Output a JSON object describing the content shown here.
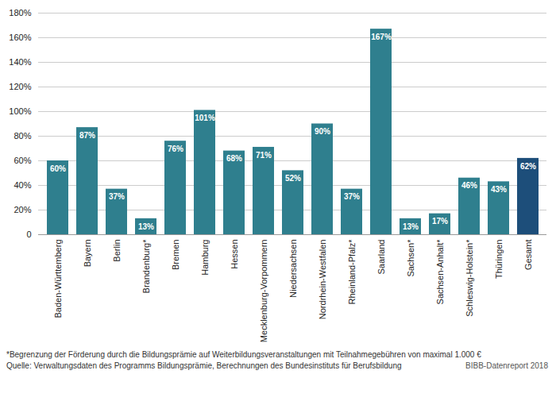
{
  "chart_data": {
    "type": "bar",
    "categories": [
      "Baden-Württemberg",
      "Bayern",
      "Berlin",
      "Brandenburg*",
      "Bremen",
      "Hamburg",
      "Hessen",
      "Mecklenburg-Vorpommern",
      "Niedersachsen",
      "Nordrhein-Westfalen",
      "Rheinland-Pfalz*",
      "Saarland",
      "Sachsen*",
      "Sachsen-Anhalt*",
      "Schleswig-Holstein*",
      "Thüringen",
      "Gesamt"
    ],
    "values": [
      60,
      87,
      37,
      13,
      76,
      101,
      68,
      71,
      52,
      90,
      37,
      167,
      13,
      17,
      46,
      43,
      62
    ],
    "value_labels": [
      "60%",
      "87%",
      "37%",
      "13%",
      "76%",
      "101%",
      "68%",
      "71%",
      "52%",
      "90%",
      "37%",
      "167%",
      "13%",
      "17%",
      "46%",
      "43%",
      "62%"
    ],
    "colors": [
      "#2f7f8e",
      "#2f7f8e",
      "#2f7f8e",
      "#2f7f8e",
      "#2f7f8e",
      "#2f7f8e",
      "#2f7f8e",
      "#2f7f8e",
      "#2f7f8e",
      "#2f7f8e",
      "#2f7f8e",
      "#2f7f8e",
      "#2f7f8e",
      "#2f7f8e",
      "#2f7f8e",
      "#2f7f8e",
      "#1d4e7a"
    ],
    "ylim": [
      0,
      180
    ],
    "yticks": [
      0,
      {
        "value": 20,
        "label": "20%"
      },
      {
        "value": 40,
        "label": "40%"
      },
      {
        "value": 60,
        "label": "60%"
      },
      {
        "value": 80,
        "label": "80%"
      },
      {
        "value": 100,
        "label": "100%"
      },
      {
        "value": 120,
        "label": "120%"
      },
      {
        "value": 140,
        "label": "140%"
      },
      {
        "value": 160,
        "label": "160%"
      },
      {
        "value": 180,
        "label": "180%"
      }
    ],
    "grid": true,
    "data_labels": true,
    "footnote": "*Begrenzung der Förderung durch die Bildungsprämie auf Weiterbildungsveranstaltungen mit Teilnahmegebühren von maximal 1.000 €",
    "source": "Quelle: Verwaltungsdaten des Programms Bildungsprämie, Berechnungen des Bundesinstituts für Berufsbildung",
    "credit": "BIBB-Datenreport 2018"
  }
}
